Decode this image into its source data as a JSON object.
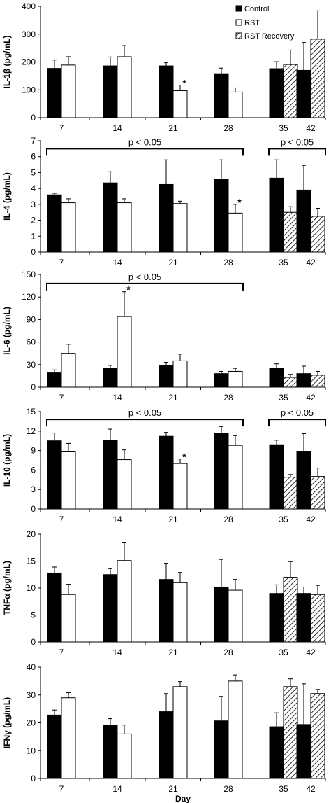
{
  "chart_data": [
    {
      "type": "bar",
      "ylabel": "IL-1β (pg/mL)",
      "ylim": [
        0,
        400
      ],
      "yticks": [
        "0",
        "100",
        "200",
        "300",
        "400"
      ],
      "categories": [
        "7",
        "14",
        "21",
        "28",
        "35",
        "42"
      ],
      "series": [
        {
          "name": "Control",
          "values": [
            177,
            186,
            186,
            158,
            176,
            170
          ],
          "errors": [
            30,
            32,
            12,
            20,
            25,
            100
          ]
        },
        {
          "name": "RST",
          "values": [
            189,
            219,
            97,
            92,
            null,
            null
          ],
          "errors": [
            30,
            40,
            20,
            15,
            null,
            null
          ]
        },
        {
          "name": "RST Recovery",
          "values": [
            null,
            null,
            null,
            null,
            191,
            282
          ],
          "errors": [
            null,
            null,
            null,
            null,
            52,
            102
          ]
        }
      ],
      "significance_brackets": [],
      "stars": [
        {
          "category": "21",
          "series": "RST",
          "text": "*"
        }
      ]
    },
    {
      "type": "bar",
      "ylabel": "IL-4 (pg/mL)",
      "ylim": [
        0,
        7
      ],
      "yticks": [
        "0",
        "1",
        "2",
        "3",
        "4",
        "5",
        "6",
        "7"
      ],
      "categories": [
        "7",
        "14",
        "21",
        "28",
        "35",
        "42"
      ],
      "series": [
        {
          "name": "Control",
          "values": [
            3.6,
            4.35,
            4.25,
            4.6,
            4.65,
            3.9
          ],
          "errors": [
            0.1,
            0.7,
            1.55,
            1.2,
            1.15,
            1.55
          ]
        },
        {
          "name": "RST",
          "values": [
            3.1,
            3.1,
            3.05,
            2.45,
            null,
            null
          ],
          "errors": [
            0.25,
            0.25,
            0.15,
            0.55,
            null,
            null
          ]
        },
        {
          "name": "RST Recovery",
          "values": [
            null,
            null,
            null,
            null,
            2.5,
            2.25
          ],
          "errors": [
            null,
            null,
            null,
            null,
            0.35,
            0.5
          ]
        }
      ],
      "significance_brackets": [
        {
          "from": "7",
          "to": "28",
          "label": "p < 0.05",
          "level": 6.5
        },
        {
          "from": "35",
          "to": "42",
          "label": "p < 0.05",
          "level": 6.5
        }
      ],
      "stars": [
        {
          "category": "28",
          "series": "RST",
          "text": "*"
        }
      ]
    },
    {
      "type": "bar",
      "ylabel": "IL-6 (pg/mL)",
      "ylim": [
        0,
        150
      ],
      "yticks": [
        "0",
        "30",
        "60",
        "90",
        "120",
        "150"
      ],
      "categories": [
        "7",
        "14",
        "21",
        "28",
        "35",
        "42"
      ],
      "series": [
        {
          "name": "Control",
          "values": [
            19,
            25,
            29,
            18,
            25,
            18
          ],
          "errors": [
            4,
            4,
            4,
            3,
            6,
            10
          ]
        },
        {
          "name": "RST",
          "values": [
            45,
            94,
            35,
            21,
            null,
            null
          ],
          "errors": [
            12,
            33,
            9,
            4,
            null,
            null
          ]
        },
        {
          "name": "RST Recovery",
          "values": [
            null,
            null,
            null,
            null,
            13,
            16
          ],
          "errors": [
            null,
            null,
            null,
            null,
            4,
            5
          ]
        }
      ],
      "significance_brackets": [
        {
          "from": "7",
          "to": "28",
          "label": "p < 0.05",
          "level": 138
        }
      ],
      "stars": [
        {
          "category": "14",
          "series": "RST",
          "text": "*"
        }
      ]
    },
    {
      "type": "bar",
      "ylabel": "IL-10 (pg/mL)",
      "ylim": [
        0,
        15
      ],
      "yticks": [
        "0",
        "3",
        "6",
        "9",
        "12",
        "15"
      ],
      "categories": [
        "7",
        "14",
        "21",
        "28",
        "35",
        "42"
      ],
      "series": [
        {
          "name": "Control",
          "values": [
            10.5,
            10.6,
            11.2,
            11.7,
            9.9,
            8.9
          ],
          "errors": [
            1.2,
            1.7,
            0.6,
            1.0,
            0.7,
            2.7
          ]
        },
        {
          "name": "RST",
          "values": [
            8.9,
            7.6,
            7.0,
            9.8,
            null,
            null
          ],
          "errors": [
            1.2,
            1.5,
            0.7,
            1.5,
            null,
            null
          ]
        },
        {
          "name": "RST Recovery",
          "values": [
            null,
            null,
            null,
            null,
            4.9,
            5.0
          ],
          "errors": [
            null,
            null,
            null,
            null,
            0.4,
            1.3
          ]
        }
      ],
      "significance_brackets": [
        {
          "from": "7",
          "to": "28",
          "label": "p < 0.05",
          "level": 13.8
        },
        {
          "from": "35",
          "to": "42",
          "label": "p < 0.05",
          "level": 13.8
        }
      ],
      "stars": [
        {
          "category": "21",
          "series": "RST",
          "text": "*"
        }
      ]
    },
    {
      "type": "bar",
      "ylabel": "TNFα (pg/mL)",
      "ylim": [
        0,
        20
      ],
      "yticks": [
        "0",
        "5",
        "10",
        "15",
        "20"
      ],
      "categories": [
        "7",
        "14",
        "21",
        "28",
        "35",
        "42"
      ],
      "series": [
        {
          "name": "Control",
          "values": [
            12.8,
            12.5,
            11.6,
            10.2,
            9.0,
            9.0
          ],
          "errors": [
            1.1,
            1.1,
            3.0,
            5.1,
            1.6,
            1.2
          ]
        },
        {
          "name": "RST",
          "values": [
            8.8,
            15.1,
            11.0,
            9.6,
            null,
            null
          ],
          "errors": [
            1.9,
            3.4,
            1.9,
            2.0,
            null,
            null
          ]
        },
        {
          "name": "RST Recovery",
          "values": [
            null,
            null,
            null,
            null,
            12.0,
            8.8
          ],
          "errors": [
            null,
            null,
            null,
            null,
            2.9,
            1.7
          ]
        }
      ],
      "significance_brackets": [],
      "stars": []
    },
    {
      "type": "bar",
      "ylabel": "IFNγ (pg/mL)",
      "xlabel": "Day",
      "ylim": [
        0,
        40
      ],
      "yticks": [
        "0",
        "10",
        "20",
        "30",
        "40"
      ],
      "categories": [
        "7",
        "14",
        "21",
        "28",
        "35",
        "42"
      ],
      "series": [
        {
          "name": "Control",
          "values": [
            22.8,
            19.0,
            24.0,
            20.7,
            18.6,
            19.4
          ],
          "errors": [
            1.8,
            2.5,
            6.5,
            8.8,
            5.0,
            14.6
          ]
        },
        {
          "name": "RST",
          "values": [
            29.0,
            16.0,
            33.0,
            35.0,
            null,
            null
          ],
          "errors": [
            1.8,
            3.2,
            1.8,
            2.2,
            null,
            null
          ]
        },
        {
          "name": "RST Recovery",
          "values": [
            null,
            null,
            null,
            null,
            33.0,
            30.5
          ],
          "errors": [
            null,
            null,
            null,
            null,
            2.8,
            1.5
          ]
        }
      ],
      "significance_brackets": [],
      "stars": []
    }
  ],
  "legend": {
    "items": [
      {
        "label": "Control",
        "style": "solid-black"
      },
      {
        "label": "RST",
        "style": "white"
      },
      {
        "label": "RST Recovery",
        "style": "hatched"
      }
    ]
  },
  "colors": {
    "control": "#000000",
    "rst": "#ffffff",
    "hatch": "#000000"
  }
}
